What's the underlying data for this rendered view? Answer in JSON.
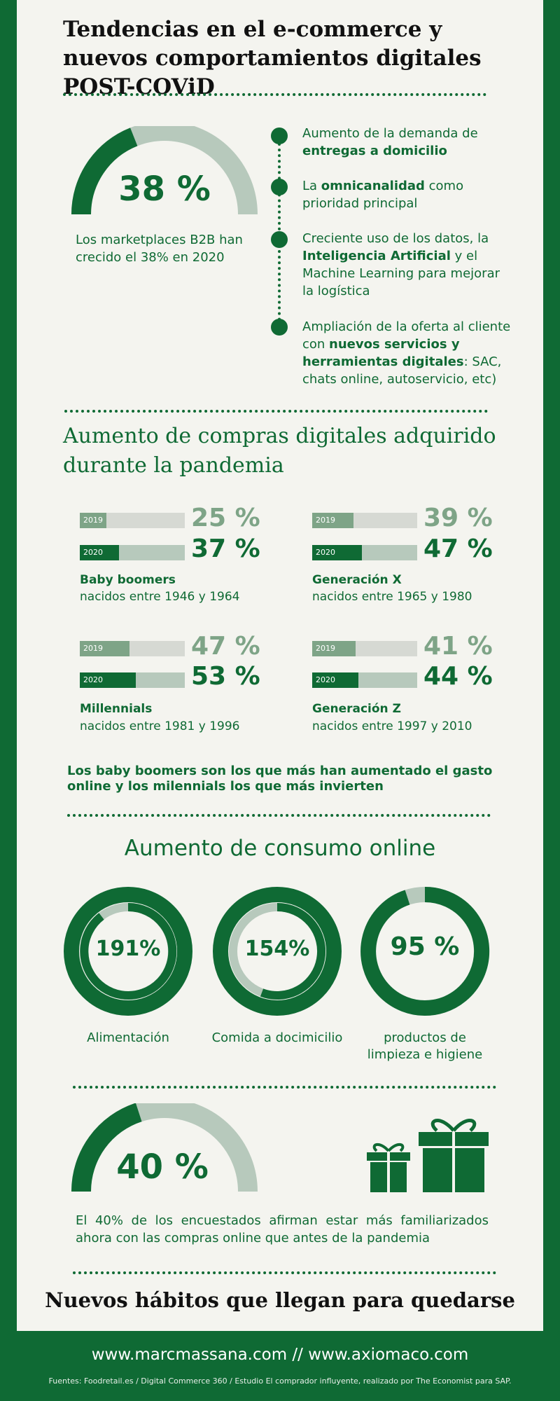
{
  "header": {
    "title": "Tendencias en el e-commerce y nuevos comportamientos digitales POST-COViD"
  },
  "b2b": {
    "value": 38,
    "pct_label": "38 %",
    "caption": "Los marketplaces B2B han crecido el 38% en 2020"
  },
  "trends": [
    {
      "pre": "Aumento de la demanda de ",
      "bold": "entregas a domicilio",
      "post": ""
    },
    {
      "pre": "La ",
      "bold": "omnicanalidad",
      "post": " como prioridad principal"
    },
    {
      "pre": "Creciente uso de los datos, la ",
      "bold": "Inteligencia Artificial",
      "post": " y el Machine Learning para mejorar la logística"
    },
    {
      "pre": "Ampliación de la oferta al cliente con ",
      "bold": "nuevos servicios y herramientas digitales",
      "post": ": SAC, chats online, autoservicio, etc)"
    }
  ],
  "digital": {
    "title": "Aumento de compras digitales adquirido durante la pandemia",
    "year_a": "2019",
    "year_b": "2020",
    "groups": [
      {
        "name": "Baby boomers",
        "sub": "nacidos entre 1946 y 1964",
        "v2019": 25,
        "v2020": 37,
        "l2019": "25 %",
        "l2020": "37 %"
      },
      {
        "name": "Generación X",
        "sub": "nacidos entre 1965 y 1980",
        "v2019": 39,
        "v2020": 47,
        "l2019": "39 %",
        "l2020": "47 %"
      },
      {
        "name": "Millennials",
        "sub": "nacidos entre 1981 y 1996",
        "v2019": 47,
        "v2020": 53,
        "l2019": "47 %",
        "l2020": "53 %"
      },
      {
        "name": "Generación Z",
        "sub": "nacidos entre 1997 y 2010",
        "v2019": 41,
        "v2020": 44,
        "l2019": "41 %",
        "l2020": "44 %"
      }
    ],
    "note": "Los baby boomers son los que más han aumentado el gasto online y los milennials los que más invierten"
  },
  "consumo": {
    "title": "Aumento de consumo online",
    "items": [
      {
        "pct": "191%",
        "label": "Alimentación"
      },
      {
        "pct": "154%",
        "label": "Comida a docimicilio"
      },
      {
        "pct": "95 %",
        "label": "productos de limpieza e higiene",
        "value": 95
      }
    ]
  },
  "familiar": {
    "value": 40,
    "pct_label": "40 %",
    "caption": "El 40% de los encuestados afirman estar más familiarizados ahora con las compras online que antes de la pandemia"
  },
  "closing": {
    "title": "Nuevos hábitos que llegan para quedarse"
  },
  "footer": {
    "sites": "www.marcmassana.com // www.axiomaco.com",
    "sources": "Fuentes: Foodretail.es / Digital Commerce 360 / Estudio El comprador influyente, realizado por The Economist para SAP."
  },
  "colors": {
    "primary": "#0f6a34",
    "light": "#b7c9bc",
    "mid": "#7ea487",
    "background": "#f4f4ef"
  }
}
